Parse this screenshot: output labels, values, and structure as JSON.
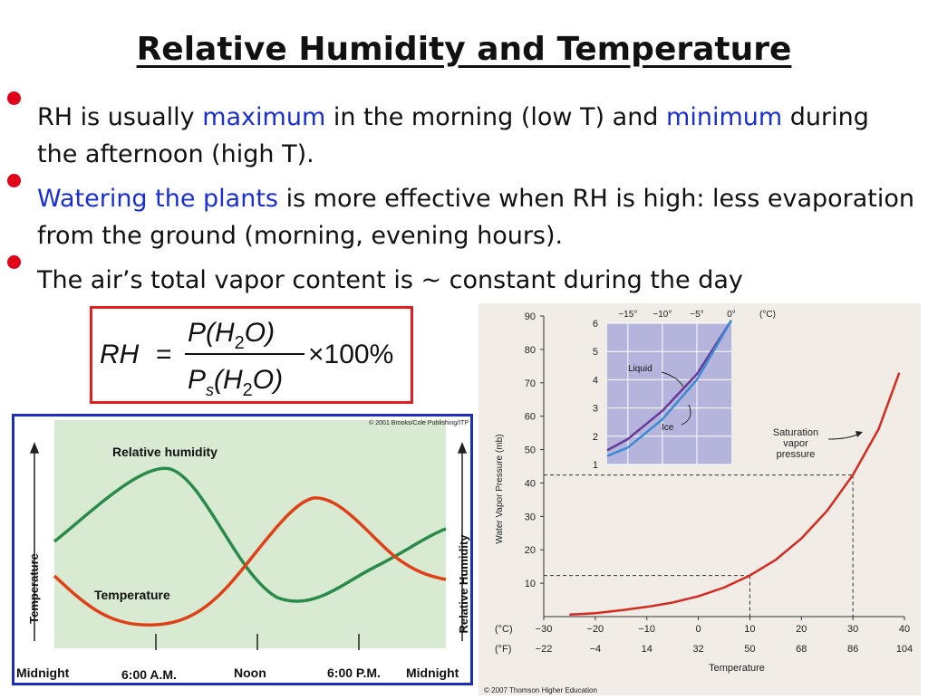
{
  "title": "Relative Humidity and Temperature",
  "bullets": [
    {
      "p1": "RH is usually ",
      "h1": "maximum",
      "p2": " in the morning (low T) and ",
      "h2": "minimum",
      "p3": " during the afternoon (high T)."
    },
    {
      "h1": "Watering the plants",
      "p2": " is more effective when RH is high: less evaporation from the ground (morning, evening hours)."
    },
    {
      "p1": "The air’s total vapor content is ~ constant during the day"
    }
  ],
  "formula": {
    "lhs": "RH",
    "eq": "=",
    "num_p": "P(H",
    "num_sub": "2",
    "num_end": "O)",
    "den_p": "P",
    "den_s": "s",
    "den_mid": "(H",
    "den_sub": "2",
    "den_end": "O)",
    "times": "×100%"
  },
  "colors": {
    "highlight": "#1a2fd0",
    "bullet": "#e0001a",
    "rh_curve": "#2a8a4a",
    "temp_curve": "#e04018",
    "sat_curve": "#d42a20",
    "liquid_curve": "#6a3a98",
    "ice_curve": "#3a8ad4"
  },
  "daily_cycle": {
    "copyright": "© 2001 Brooks/Cole Publishing/ITP",
    "rh_label": "Relative  humidity",
    "temp_label": "Temperature",
    "left_axis": "Temperature",
    "right_axis": "Relative  Humidity",
    "time_labels": [
      "Midnight",
      "6:00 A.M.",
      "Noon",
      "6:00 P.M.",
      "Midnight"
    ]
  },
  "chart_data": {
    "type": "line",
    "title": "Saturation vapor pressure",
    "xlabel": "Temperature",
    "ylabel": "Water Vapor Pressure (mb)",
    "x_c": [
      -30,
      -20,
      -10,
      0,
      10,
      20,
      30,
      40
    ],
    "x_f": [
      "-22",
      "-4",
      "14",
      "32",
      "50",
      "68",
      "86",
      "104"
    ],
    "xunit_c": "(°C)",
    "xunit_f": "(°F)",
    "yticks": [
      10,
      20,
      30,
      40,
      50,
      60,
      70,
      80,
      90
    ],
    "ylim": [
      0,
      90
    ],
    "xlim": [
      -30,
      40
    ],
    "series": [
      {
        "name": "Saturation vapor pressure",
        "x": [
          -25,
          -20,
          -15,
          -10,
          -5,
          0,
          5,
          10,
          15,
          20,
          25,
          30,
          35,
          39
        ],
        "y": [
          0.6,
          1.0,
          1.9,
          2.9,
          4.2,
          6.1,
          8.7,
          12.3,
          17.0,
          23.4,
          31.7,
          42.4,
          56.2,
          73.0
        ]
      }
    ],
    "annotations": [
      "Saturation",
      "vapor",
      "pressure"
    ],
    "guide_points": [
      {
        "x": 10,
        "y": 12.3
      },
      {
        "x": 30,
        "y": 42.4
      }
    ],
    "inset": {
      "xticks": [
        "−15°",
        "−10°",
        "−5°",
        "0°",
        "(°C)"
      ],
      "yticks": [
        1,
        2,
        3,
        4,
        5,
        6
      ],
      "ylim": [
        1,
        6
      ],
      "xlim": [
        -18,
        0
      ],
      "labels": [
        "Liquid",
        "Ice"
      ],
      "series": [
        {
          "name": "Liquid",
          "x": [
            -18,
            -15,
            -10,
            -5,
            0
          ],
          "y": [
            1.5,
            1.9,
            2.9,
            4.2,
            6.1
          ]
        },
        {
          "name": "Ice",
          "x": [
            -18,
            -15,
            -10,
            -5,
            0
          ],
          "y": [
            1.3,
            1.6,
            2.6,
            4.0,
            6.1
          ]
        }
      ]
    },
    "copyright": "© 2007 Thomson Higher Education"
  }
}
